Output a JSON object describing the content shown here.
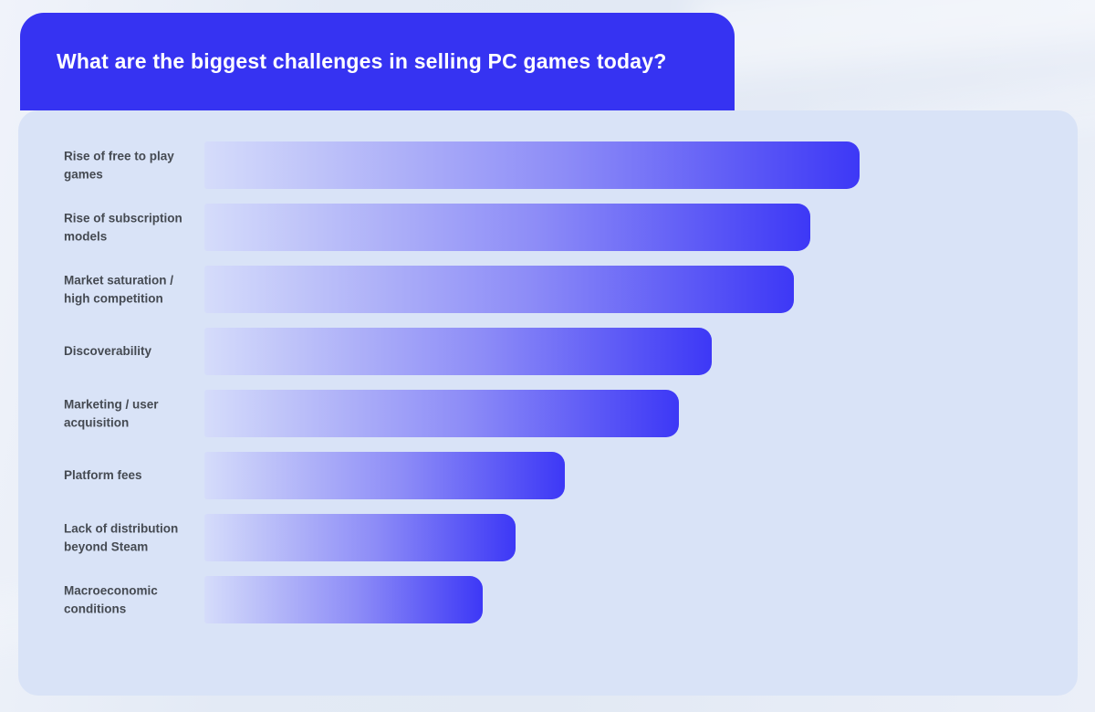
{
  "header": {
    "title": "What are the biggest challenges in selling PC games today?"
  },
  "chart_data": {
    "type": "bar",
    "orientation": "horizontal",
    "title": "What are the biggest challenges in selling PC games today?",
    "categories": [
      "Rise of free to play games",
      "Rise of subscription models",
      "Market saturation / high competition",
      "Discoverability",
      "Marketing / user acquisition",
      "Platform fees",
      "Lack of distribution beyond Steam",
      "Macroeconomic conditions"
    ],
    "values": [
      40,
      37,
      36,
      31,
      29,
      22,
      19,
      17
    ],
    "unit": "%",
    "xlabel": "",
    "ylabel": "",
    "xlim": [
      0,
      50
    ],
    "x_ticks": [
      "0%",
      "10%",
      "20%",
      "30%",
      "40%",
      "50%"
    ],
    "grid": false,
    "legend": false,
    "colors": {
      "header_bg": "#3633f2",
      "title_text": "#ffffff",
      "panel_bg": "#d9e3f7",
      "bar_gradient_start": "#d5dcfa",
      "bar_gradient_end": "#3d38f6",
      "category_label": "#454a52",
      "tick_label": "#4b5058"
    }
  }
}
